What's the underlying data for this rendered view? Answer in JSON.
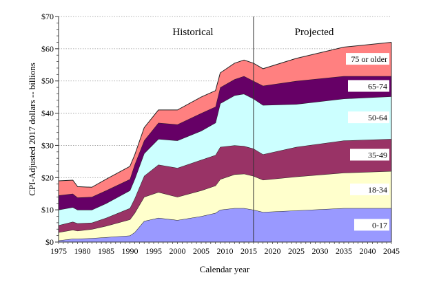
{
  "chart_data": {
    "type": "area",
    "stacked": true,
    "title": "",
    "xlabel": "Calendar year",
    "ylabel": "CPI-Adjusted 2017 dollars -- billions",
    "xlim": [
      1975,
      2045
    ],
    "ylim": [
      0,
      70
    ],
    "x_ticks": [
      "1975",
      "1980",
      "1985",
      "1990",
      "1995",
      "2000",
      "2005",
      "2010",
      "2015",
      "2020",
      "2025",
      "2030",
      "2035",
      "2040",
      "2045"
    ],
    "y_ticks": [
      "$0",
      "$10",
      "$20",
      "$30",
      "$40",
      "$50",
      "$60",
      "$70"
    ],
    "y_tick_values": [
      0,
      10,
      20,
      30,
      40,
      50,
      60,
      70
    ],
    "grid": "horizontal dotted",
    "divider_year": 2016,
    "region_labels": {
      "historical": "Historical",
      "projected": "Projected"
    },
    "x": [
      1975,
      1978,
      1979,
      1982,
      1985,
      1990,
      1991,
      1993,
      1996,
      2000,
      2005,
      2008,
      2009,
      2012,
      2014,
      2016,
      2018,
      2025,
      2035,
      2045
    ],
    "series": [
      {
        "name": "0-17",
        "color": "#9999ff",
        "values": [
          0.5,
          1.0,
          1.0,
          1.2,
          1.5,
          2.0,
          3.0,
          6.5,
          7.5,
          6.8,
          8.0,
          9.0,
          10.0,
          10.5,
          10.5,
          10.0,
          9.3,
          9.8,
          10.5,
          10.5
        ]
      },
      {
        "name": "18-34",
        "color": "#ffffcc",
        "values": [
          2.5,
          2.8,
          2.5,
          2.8,
          3.5,
          5.0,
          6.0,
          7.5,
          8.0,
          7.2,
          8.0,
          8.5,
          9.5,
          10.5,
          10.7,
          10.5,
          10.0,
          10.5,
          11.0,
          11.5
        ]
      },
      {
        "name": "35-49",
        "color": "#993366",
        "values": [
          2.2,
          2.5,
          2.3,
          2.0,
          2.5,
          3.5,
          4.5,
          6.5,
          8.5,
          9.0,
          9.5,
          9.5,
          10.0,
          9.0,
          8.6,
          8.5,
          7.9,
          9.2,
          10.0,
          10.0
        ]
      },
      {
        "name": "50-64",
        "color": "#ccffff",
        "values": [
          4.8,
          4.5,
          4.2,
          4.0,
          4.5,
          5.5,
          6.0,
          7.0,
          8.0,
          8.5,
          9.0,
          10.0,
          13.5,
          15.5,
          16.2,
          15.5,
          15.3,
          13.3,
          13.0,
          13.2
        ]
      },
      {
        "name": "65-74",
        "color": "#660066",
        "values": [
          4.5,
          4.2,
          3.8,
          4.0,
          4.0,
          3.5,
          4.5,
          4.0,
          5.0,
          5.0,
          5.5,
          5.0,
          5.0,
          5.0,
          5.5,
          5.5,
          6.0,
          7.2,
          7.0,
          6.3
        ]
      },
      {
        "name": "75 or older",
        "color": "#ff8080",
        "values": [
          4.5,
          4.2,
          3.4,
          3.0,
          3.5,
          4.0,
          3.0,
          4.0,
          4.0,
          4.5,
          5.0,
          5.0,
          4.5,
          5.0,
          5.0,
          5.5,
          5.3,
          7.0,
          9.0,
          10.5
        ]
      }
    ]
  }
}
